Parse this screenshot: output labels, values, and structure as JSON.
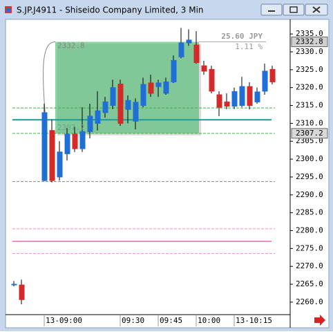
{
  "chart_data": {
    "type": "candlestick",
    "title": "S.JP.J4911 - Shiseido Company Limited, 3 Min",
    "categories": [
      null,
      null,
      null,
      null,
      "13-09:00",
      null,
      null,
      null,
      null,
      null,
      null,
      null,
      null,
      null,
      "09:30",
      null,
      null,
      null,
      null,
      "09:45",
      null,
      null,
      null,
      null,
      "10:00",
      null,
      null,
      null,
      null,
      "13-10:15",
      null,
      null,
      null,
      null,
      null
    ],
    "open": [
      2265,
      2264.8,
      null,
      null,
      2294,
      2308,
      2295,
      2301.5,
      2307,
      2302.9,
      2307.7,
      2310,
      2313,
      2315,
      2321,
      2313.9,
      2310.6,
      2315,
      2321.3,
      2320.3,
      2318.4,
      2321.6,
      2328.6,
      2332.5,
      2331.9,
      2326.1,
      2325.1,
      2318,
      2316,
      2314.8,
      2315,
      2320.3,
      2316,
      2319,
      2325.1
    ],
    "high": [
      2265.9,
      2266.3,
      null,
      null,
      2315.5,
      2311,
      2305,
      2308.7,
      2309,
      2314.5,
      2315.5,
      2319,
      2317.4,
      2322.2,
      2322.2,
      2317.8,
      2317,
      2322.8,
      2323.6,
      2322.2,
      2322.8,
      2329,
      2336.7,
      2336.3,
      2335.8,
      2327.5,
      2326.1,
      2319,
      2318.4,
      2320,
      2323,
      2321.5,
      2320,
      2326.7,
      2326.1
    ],
    "low": [
      2264.4,
      2259.4,
      null,
      null,
      2293.8,
      2293.5,
      2294,
      2299.6,
      2302,
      2302,
      2305.8,
      2308,
      2311.6,
      2314,
      2309.3,
      2310,
      2308.3,
      2314.5,
      2317.4,
      2317.4,
      2318,
      2321.3,
      2328.2,
      2331.7,
      2326.7,
      2323.6,
      2318.4,
      2312,
      2314,
      2314,
      2314.5,
      2313.9,
      2315.5,
      2318,
      2320.9
    ],
    "close": [
      2265,
      2260.7,
      null,
      null,
      2313,
      2294,
      2302,
      2307,
      2302.9,
      2307.7,
      2312,
      2313.5,
      2316,
      2320,
      2310,
      2316.4,
      2315.9,
      2320.9,
      2318.4,
      2321.3,
      2321.6,
      2327.6,
      2332.5,
      2333.3,
      2327,
      2324.6,
      2319,
      2314.5,
      2314.8,
      2318.9,
      2320.3,
      2315,
      2318.8,
      2324.6,
      2321.6
    ],
    "up_color": "#1f6fd6",
    "down_color": "#d42a2a",
    "ylim": [
      2256.5,
      2338.7
    ],
    "yticks": [
      {
        "value": 2260,
        "label": "2260.0"
      },
      {
        "value": 2265,
        "label": "2265.0"
      },
      {
        "value": 2270,
        "label": "2270.0"
      },
      {
        "value": 2275,
        "label": "2275.0"
      },
      {
        "value": 2280,
        "label": "2280.0"
      },
      {
        "value": 2285,
        "label": "2285.0"
      },
      {
        "value": 2290,
        "label": "2290.0"
      },
      {
        "value": 2295,
        "label": "2295.0"
      },
      {
        "value": 2300,
        "label": "2300.0"
      },
      {
        "value": 2305,
        "label": "2305.0"
      },
      {
        "value": 2310,
        "label": "2310.0"
      },
      {
        "value": 2315,
        "label": "2315.0"
      },
      {
        "value": 2320,
        "label": "2320.0"
      },
      {
        "value": 2325,
        "label": "2325.0"
      },
      {
        "value": 2330,
        "label": "2330.0"
      },
      {
        "value": 2335,
        "label": "2335.0"
      }
    ],
    "grid": false,
    "levels": [
      {
        "value": 2314.3,
        "color": "#3cb043",
        "dashed": true
      },
      {
        "value": 2311,
        "color": "#1a9a9a",
        "dashed": false
      },
      {
        "value": 2307.2,
        "color": "#3cb043",
        "dashed": true
      },
      {
        "value": 2293.7,
        "color": "#888888",
        "dashed": true
      },
      {
        "value": 2280.5,
        "color": "#f08cc8",
        "dashed": true
      },
      {
        "value": 2277,
        "color": "#f08cc8",
        "dashed": false
      },
      {
        "value": 2273.6,
        "color": "#f08cc8",
        "dashed": true
      }
    ],
    "measure": {
      "high": 2332.8,
      "low": 2307.2,
      "change": "25.60 JPY",
      "percent": "1.11 %",
      "color": "#5cbf7a"
    }
  }
}
